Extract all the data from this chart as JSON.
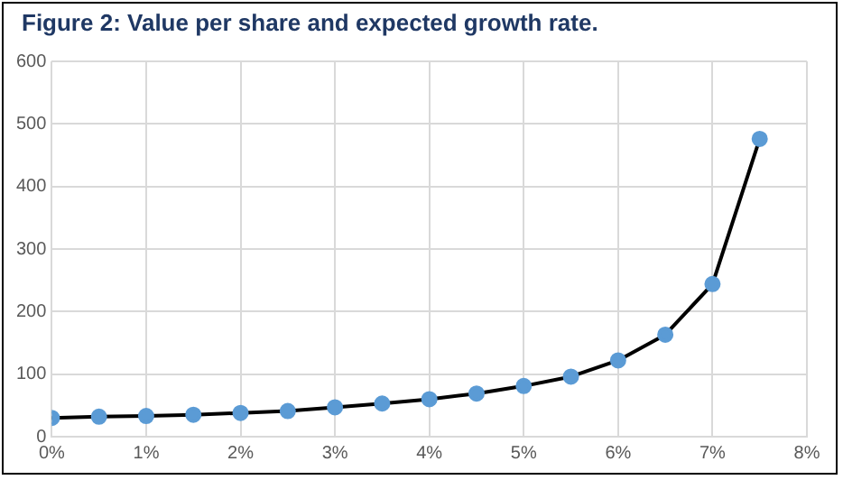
{
  "chart_data": {
    "type": "line",
    "title": "Figure 2: Value per share and expected growth rate.",
    "x": [
      0,
      0.5,
      1,
      1.5,
      2,
      2.5,
      3,
      3.5,
      4,
      4.5,
      5,
      5.5,
      6,
      6.5,
      7,
      7.5
    ],
    "series": [
      {
        "color": "#000000",
        "colors": [
          "#5b9bd5",
          "#5b9bd5",
          "#5b9bd5",
          "#5b9bd5",
          "#5b9bd5",
          "#5b9bd5",
          "#5b9bd5",
          "#5b9bd5",
          "#5b9bd5",
          "#5b9bd5",
          "#5b9bd5",
          "#5b9bd5",
          "#5b9bd5",
          "#5b9bd5",
          "#5b9bd5",
          "#5b9bd5"
        ],
        "values": [
          30,
          32,
          33,
          35,
          38,
          41,
          47,
          53,
          60,
          69,
          81,
          96,
          122,
          163,
          244,
          476
        ]
      }
    ],
    "xlim": [
      0,
      8
    ],
    "xticks": [
      {
        "value": 0,
        "label": "0%"
      },
      {
        "value": 1,
        "label": "1%"
      },
      {
        "value": 2,
        "label": "2%"
      },
      {
        "value": 3,
        "label": "3%"
      },
      {
        "value": 4,
        "label": "4%"
      },
      {
        "value": 5,
        "label": "5%"
      },
      {
        "value": 6,
        "label": "6%"
      },
      {
        "value": 7,
        "label": "7%"
      },
      {
        "value": 8,
        "label": "8%"
      }
    ],
    "ylim": [
      0,
      600
    ],
    "yticks": [
      0,
      100,
      200,
      300,
      400,
      500,
      600
    ],
    "grid": true,
    "legend": false,
    "marker": "circle",
    "line_style": "solid"
  }
}
